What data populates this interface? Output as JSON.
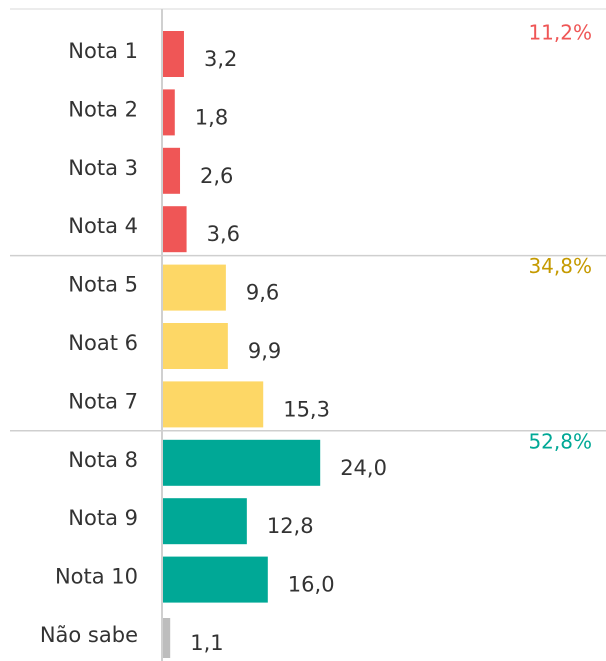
{
  "chart_data": {
    "type": "bar",
    "orientation": "horizontal",
    "groups": [
      {
        "annotation": "11,2%",
        "color": "#ef5656",
        "categories": [
          "Nota 1",
          "Nota 2",
          "Nota 3",
          "Nota 4"
        ],
        "values": [
          3.2,
          1.8,
          2.6,
          3.6
        ],
        "value_labels": [
          "3,2",
          "1,8",
          "2,6",
          "3,6"
        ]
      },
      {
        "annotation": "34,8%",
        "color": "#fdd766",
        "annotation_color": "#c59a00",
        "categories": [
          "Nota 5",
          "Noat 6",
          "Nota 7"
        ],
        "values": [
          9.6,
          9.9,
          15.3
        ],
        "value_labels": [
          "9,6",
          "9,9",
          "15,3"
        ]
      },
      {
        "annotation": "52,8%",
        "color": "#00a896",
        "categories": [
          "Nota 8",
          "Nota 9",
          "Nota 10"
        ],
        "values": [
          24.0,
          12.8,
          16.0
        ],
        "value_labels": [
          "24,0",
          "12,8",
          "16,0"
        ]
      },
      {
        "color": "#bdbdbd",
        "categories": [
          "Não sabe"
        ],
        "values": [
          1.1
        ],
        "value_labels": [
          "1,1"
        ]
      }
    ]
  }
}
